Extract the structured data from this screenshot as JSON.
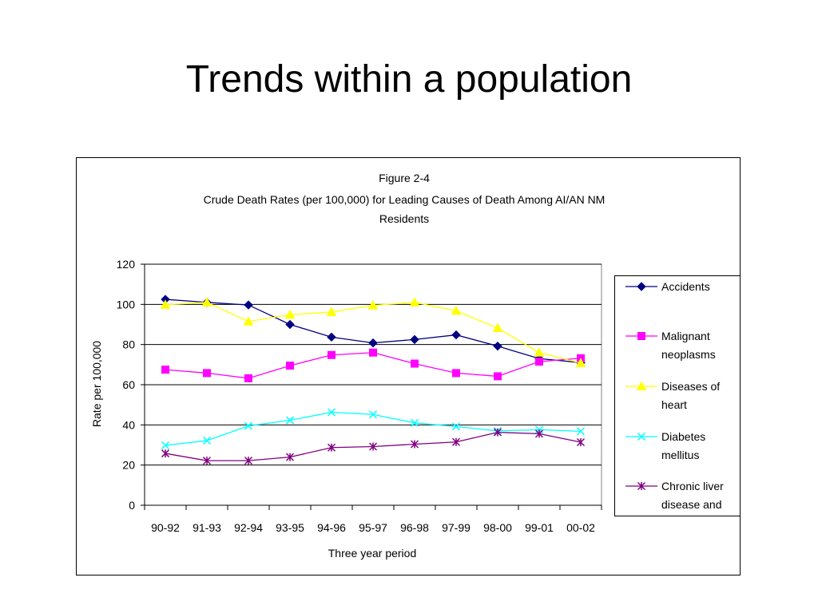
{
  "slide": {
    "title": "Trends within a population"
  },
  "chart_data": {
    "type": "line",
    "figure_label": "Figure 2-4",
    "title_lines": [
      "Crude Death Rates (per 100,000) for Leading Causes of Death Among AI/AN NM",
      "Residents"
    ],
    "xlabel": "Three year period",
    "ylabel": "Rate per 100,000",
    "ylim": [
      0,
      120
    ],
    "yticks": [
      0,
      20,
      40,
      60,
      80,
      100,
      120
    ],
    "grid": "horizontal",
    "legend_position": "right",
    "categories": [
      "90-92",
      "91-93",
      "92-94",
      "93-95",
      "94-96",
      "95-97",
      "96-98",
      "97-99",
      "98-00",
      "99-01",
      "00-02"
    ],
    "series": [
      {
        "name": "Accidents",
        "legend_lines": [
          "Accidents"
        ],
        "color": "#000080",
        "marker": "diamond",
        "values": [
          102.5,
          101,
          99.7,
          90,
          83.7,
          80.8,
          82.5,
          84.8,
          79.2,
          73,
          71
        ]
      },
      {
        "name": "Malignant neoplasms",
        "legend_lines": [
          "Malignant",
          "neoplasms"
        ],
        "color": "#FF00FF",
        "marker": "square",
        "values": [
          67.5,
          65.8,
          63.2,
          69.5,
          74.8,
          76,
          70.5,
          65.8,
          64.2,
          71.5,
          73.2
        ]
      },
      {
        "name": "Diseases of heart",
        "legend_lines": [
          "Diseases of",
          "heart"
        ],
        "color": "#FFFF00",
        "marker": "triangle",
        "values": [
          99.8,
          101,
          91.5,
          94.8,
          96.2,
          99.5,
          101,
          96.8,
          88.2,
          76,
          70.8
        ]
      },
      {
        "name": "Diabetes mellitus",
        "legend_lines": [
          "Diabetes",
          "mellitus"
        ],
        "color": "#00FFFF",
        "marker": "x",
        "values": [
          29.8,
          32.2,
          39.5,
          42.3,
          46.3,
          45.2,
          41,
          39.2,
          37,
          37.6,
          36.8
        ]
      },
      {
        "name": "Chronic liver disease and",
        "legend_lines": [
          "Chronic liver",
          "disease and"
        ],
        "color": "#800080",
        "marker": "asterisk",
        "values": [
          25.8,
          22.2,
          22.2,
          24,
          28.7,
          29.2,
          30.4,
          31.5,
          36.3,
          35.6,
          31.4
        ]
      }
    ]
  }
}
